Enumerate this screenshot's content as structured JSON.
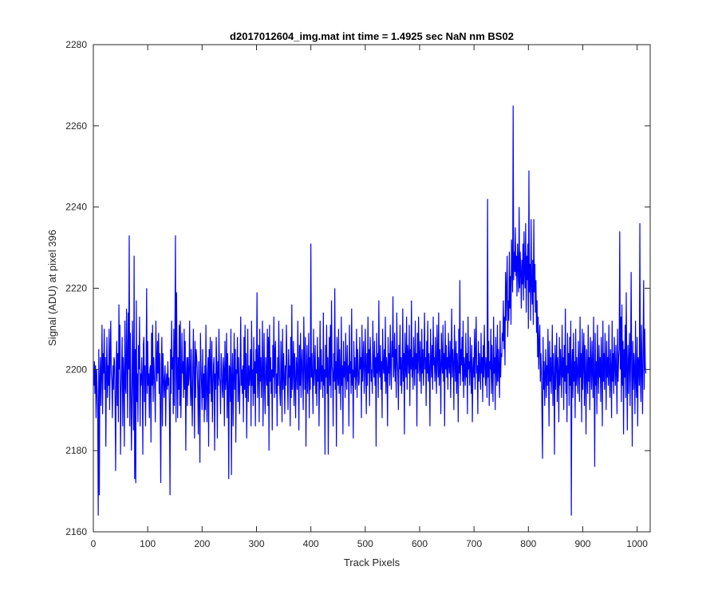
{
  "chart_data": {
    "type": "line",
    "title": "d2017012604_img.mat int time = 1.4925 sec  NaN nm BS02",
    "xlabel": "Track Pixels",
    "ylabel": "Signal (ADU) at pixel 396",
    "xlim": [
      0,
      1024
    ],
    "ylim": [
      2160,
      2280
    ],
    "xticks": [
      0,
      100,
      200,
      300,
      400,
      500,
      600,
      700,
      800,
      900,
      1000
    ],
    "yticks": [
      2160,
      2180,
      2200,
      2220,
      2240,
      2260,
      2280
    ],
    "grid": false,
    "legend": "none",
    "line_color": "#0000ff",
    "series": [
      {
        "x_start": 1,
        "x_step": 1,
        "values": [
          2196,
          2202,
          2194,
          2201,
          2188,
          2200,
          2195,
          2190,
          2164,
          2205,
          2169,
          2198,
          2203,
          2191,
          2199,
          2211,
          2189,
          2204,
          2199,
          2210,
          2195,
          2203,
          2181,
          2199,
          2208,
          2193,
          2201,
          2196,
          2210,
          2190,
          2203,
          2212,
          2199,
          2197,
          2188,
          2201,
          2195,
          2203,
          2202,
          2192,
          2175,
          2200,
          2207,
          2191,
          2204,
          2187,
          2216,
          2200,
          2211,
          2179,
          2194,
          2200,
          2208,
          2186,
          2203,
          2198,
          2181,
          2212,
          2196,
          2194,
          2215,
          2203,
          2188,
          2214,
          2200,
          2233,
          2186,
          2209,
          2196,
          2180,
          2190,
          2212,
          2199,
          2185,
          2228,
          2173,
          2205,
          2172,
          2217,
          2192,
          2199,
          2187,
          2206,
          2200,
          2213,
          2186,
          2199,
          2196,
          2203,
          2198,
          2179,
          2206,
          2208,
          2192,
          2201,
          2186,
          2199,
          2220,
          2194,
          2207,
          2196,
          2199,
          2188,
          2200,
          2201,
          2182,
          2209,
          2196,
          2211,
          2192,
          2203,
          2199,
          2195,
          2187,
          2212,
          2201,
          2197,
          2207,
          2199,
          2209,
          2194,
          2204,
          2190,
          2172,
          2201,
          2208,
          2186,
          2204,
          2199,
          2193,
          2197,
          2201,
          2186,
          2197,
          2199,
          2195,
          2202,
          2196,
          2198,
          2190,
          2169,
          2205,
          2194,
          2212,
          2200,
          2203,
          2189,
          2210,
          2191,
          2208,
          2233,
          2187,
          2219,
          2201,
          2188,
          2203,
          2195,
          2211,
          2191,
          2212,
          2188,
          2197,
          2209,
          2199,
          2202,
          2193,
          2210,
          2195,
          2207,
          2180,
          2198,
          2203,
          2191,
          2203,
          2196,
          2198,
          2212,
          2199,
          2191,
          2205,
          2194,
          2186,
          2200,
          2210,
          2198,
          2183,
          2207,
          2193,
          2205,
          2203,
          2200,
          2195,
          2184,
          2202,
          2194,
          2177,
          2209,
          2201,
          2196,
          2190,
          2205,
          2193,
          2199,
          2187,
          2201,
          2190,
          2211,
          2195,
          2187,
          2199,
          2203,
          2181,
          2205,
          2194,
          2208,
          2200,
          2192,
          2207,
          2187,
          2196,
          2201,
          2203,
          2180,
          2199,
          2195,
          2208,
          2201,
          2183,
          2202,
          2196,
          2210,
          2198,
          2197,
          2189,
          2204,
          2201,
          2195,
          2193,
          2203,
          2200,
          2186,
          2207,
          2195,
          2198,
          2209,
          2188,
          2204,
          2196,
          2173,
          2201,
          2200,
          2192,
          2210,
          2174,
          2198,
          2204,
          2186,
          2197,
          2209,
          2195,
          2205,
          2182,
          2200,
          2199,
          2208,
          2192,
          2203,
          2195,
          2189,
          2201,
          2213,
          2196,
          2200,
          2194,
          2201,
          2187,
          2208,
          2195,
          2211,
          2193,
          2204,
          2183,
          2197,
          2210,
          2192,
          2201,
          2196,
          2199,
          2205,
          2186,
          2212,
          2196,
          2200,
          2191,
          2208,
          2194,
          2202,
          2186,
          2205,
          2199,
          2219,
          2193,
          2200,
          2206,
          2187,
          2210,
          2197,
          2203,
          2193,
          2200,
          2212,
          2186,
          2198,
          2209,
          2195,
          2189,
          2203,
          2199,
          2196,
          2210,
          2191,
          2208,
          2180,
          2211,
          2197,
          2203,
          2194,
          2200,
          2185,
          2206,
          2198,
          2213,
          2193,
          2204,
          2207,
          2194,
          2199,
          2186,
          2203,
          2196,
          2212,
          2201,
          2194,
          2191,
          2207,
          2200,
          2187,
          2210,
          2195,
          2204,
          2198,
          2189,
          2201,
          2196,
          2211,
          2203,
          2197,
          2190,
          2205,
          2198,
          2201,
          2186,
          2208,
          2193,
          2216,
          2195,
          2200,
          2207,
          2191,
          2204,
          2197,
          2188,
          2203,
          2200,
          2195,
          2212,
          2199,
          2185,
          2206,
          2196,
          2209,
          2193,
          2201,
          2205,
          2197,
          2190,
          2213,
          2202,
          2195,
          2208,
          2181,
          2200,
          2206,
          2194,
          2199,
          2209,
          2188,
          2203,
          2195,
          2231,
          2198,
          2204,
          2197,
          2189,
          2210,
          2196,
          2201,
          2206,
          2194,
          2200,
          2191,
          2208,
          2197,
          2203,
          2186,
          2199,
          2212,
          2195,
          2205,
          2197,
          2201,
          2193,
          2214,
          2196,
          2200,
          2179,
          2206,
          2198,
          2211,
          2194,
          2203,
          2179,
          2200,
          2208,
          2196,
          2211,
          2193,
          2217,
          2201,
          2199,
          2186,
          2204,
          2197,
          2220,
          2195,
          2202,
          2181,
          2208,
          2199,
          2196,
          2210,
          2194,
          2205,
          2199,
          2190,
          2213,
          2196,
          2201,
          2184,
          2207,
          2198,
          2202,
          2193,
          2209,
          2200,
          2195,
          2206,
          2197,
          2201,
          2186,
          2211,
          2199,
          2202,
          2194,
          2215,
          2196,
          2200,
          2183,
          2207,
          2198,
          2203,
          2195,
          2199,
          2210,
          2193,
          2205,
          2201,
          2196,
          2197,
          2208,
          2200,
          2203,
          2188,
          2211,
          2197,
          2202,
          2207,
          2194,
          2198,
          2210,
          2201,
          2189,
          2204,
          2196,
          2213,
          2199,
          2205,
          2191,
          2208,
          2203,
          2197,
          2200,
          2194,
          2212,
          2201,
          2198,
          2207,
          2196,
          2203,
          2181,
          2209,
          2199,
          2204,
          2193,
          2217,
          2200,
          2198,
          2206,
          2195,
          2202,
          2188,
          2210,
          2201,
          2199,
          2205,
          2197,
          2213,
          2194,
          2203,
          2200,
          2186,
          2208,
          2199,
          2204,
          2196,
          2211,
          2201,
          2195,
          2207,
          2203,
          2218,
          2198,
          2201,
          2209,
          2197,
          2205,
          2193,
          2214,
          2202,
          2199,
          2190,
          2206,
          2200,
          2211,
          2196,
          2203,
          2194,
          2200,
          2215,
          2197,
          2204,
          2184,
          2209,
          2201,
          2198,
          2213,
          2195,
          2206,
          2203,
          2199,
          2211,
          2191,
          2205,
          2200,
          2217,
          2198,
          2203,
          2195,
          2208,
          2202,
          2196,
          2212,
          2200,
          2204,
          2186,
          2209,
          2199,
          2213,
          2203,
          2197,
          2207,
          2201,
          2194,
          2210,
          2199,
          2205,
          2196,
          2202,
          2214,
          2200,
          2203,
          2191,
          2207,
          2199,
          2212,
          2197,
          2204,
          2200,
          2186,
          2210,
          2202,
          2198,
          2206,
          2195,
          2213,
          2201,
          2203,
          2197,
          2208,
          2200,
          2194,
          2211,
          2203,
          2198,
          2214,
          2196,
          2205,
          2201,
          2189,
          2209,
          2202,
          2199,
          2211,
          2197,
          2204,
          2186,
          2212,
          2200,
          2206,
          2198,
          2203,
          2195,
          2209,
          2201,
          2199,
          2207,
          2193,
          2202,
          2215,
          2198,
          2205,
          2201,
          2190,
          2211,
          2203,
          2197,
          2207,
          2194,
          2204,
          2200,
          2187,
          2210,
          2199,
          2222,
          2196,
          2205,
          2201,
          2208,
          2197,
          2212,
          2193,
          2203,
          2200,
          2196,
          2209,
          2198,
          2204,
          2189,
          2213,
          2200,
          2202,
          2196,
          2208,
          2201,
          2194,
          2206,
          2187,
          2200,
          2203,
          2198,
          2210,
          2195,
          2204,
          2213,
          2199,
          2201,
          2189,
          2207,
          2197,
          2204,
          2200,
          2195,
          2209,
          2199,
          2203,
          2192,
          2206,
          2198,
          2211,
          2201,
          2196,
          2203,
          2199,
          2193,
          2242,
          2198,
          2207,
          2191,
          2202,
          2200,
          2210,
          2194,
          2206,
          2198,
          2192,
          2213,
          2199,
          2203,
          2190,
          2208,
          2201,
          2196,
          2211,
          2197,
          2205,
          2200,
          2193,
          2212,
          2198,
          2204,
          2203,
          2209,
          2207,
          2217,
          2205,
          2213,
          2201,
          2224,
          2212,
          2220,
          2228,
          2208,
          2217,
          2212,
          2229,
          2215,
          2223,
          2211,
          2232,
          2226,
          2219,
          2265,
          2222,
          2229,
          2224,
          2235,
          2223,
          2228,
          2218,
          2231,
          2226,
          2219,
          2240,
          2220,
          2229,
          2224,
          2215,
          2227,
          2221,
          2231,
          2217,
          2234,
          2224,
          2220,
          2236,
          2214,
          2228,
          2222,
          2231,
          2210,
          2249,
          2219,
          2226,
          2212,
          2237,
          2221,
          2216,
          2227,
          2211,
          2237,
          2219,
          2226,
          2214,
          2222,
          2209,
          2217,
          2203,
          2213,
          2200,
          2207,
          2211,
          2197,
          2204,
          2200,
          2189,
          2178,
          2208,
          2195,
          2202,
          2191,
          2199,
          2205,
          2193,
          2201,
          2196,
          2210,
          2199,
          2186,
          2207,
          2197,
          2203,
          2194,
          2200,
          2211,
          2191,
          2204,
          2198,
          2179,
          2206,
          2195,
          2201,
          2209,
          2192,
          2203,
          2199,
          2187,
          2208,
          2196,
          2205,
          2200,
          2193,
          2211,
          2198,
          2203,
          2190,
          2206,
          2197,
          2215,
          2194,
          2201,
          2187,
          2209,
          2199,
          2204,
          2191,
          2208,
          2196,
          2212,
          2164,
          2201,
          2205,
          2193,
          2209,
          2197,
          2202,
          2188,
          2210,
          2196,
          2203,
          2199,
          2194,
          2207,
          2200,
          2192,
          2213,
          2198,
          2204,
          2187,
          2210,
          2195,
          2202,
          2209,
          2191,
          2206,
          2199,
          2184,
          2205,
          2200,
          2194,
          2211,
          2197,
          2203,
          2190,
          2208,
          2201,
          2195,
          2207,
          2199,
          2193,
          2213,
          2198,
          2176,
          2209,
          2196,
          2202,
          2189,
          2211,
          2200,
          2194,
          2206,
          2198,
          2203,
          2192,
          2208,
          2200,
          2186,
          2212,
          2197,
          2204,
          2195,
          2209,
          2201,
          2190,
          2207,
          2198,
          2203,
          2196,
          2211,
          2199,
          2193,
          2205,
          2200,
          2188,
          2212,
          2197,
          2204,
          2194,
          2208,
          2201,
          2196,
          2206,
          2199,
          2189,
          2210,
          2197,
          2203,
          2205,
          2234,
          2200,
          2213,
          2192,
          2216,
          2196,
          2207,
          2184,
          2205,
          2198,
          2211,
          2193,
          2219,
          2200,
          2185,
          2206,
          2194,
          2202,
          2209,
          2191,
          2203,
          2224,
          2199,
          2181,
          2207,
          2195,
          2204,
          2200,
          2189,
          2212,
          2197,
          2193,
          2208,
          2186,
          2203,
          2201,
          2196,
          2236,
          2198,
          2192,
          2211,
          2200,
          2189,
          2206,
          2222,
          2195,
          2210,
          2201,
          2199
        ]
      }
    ]
  }
}
